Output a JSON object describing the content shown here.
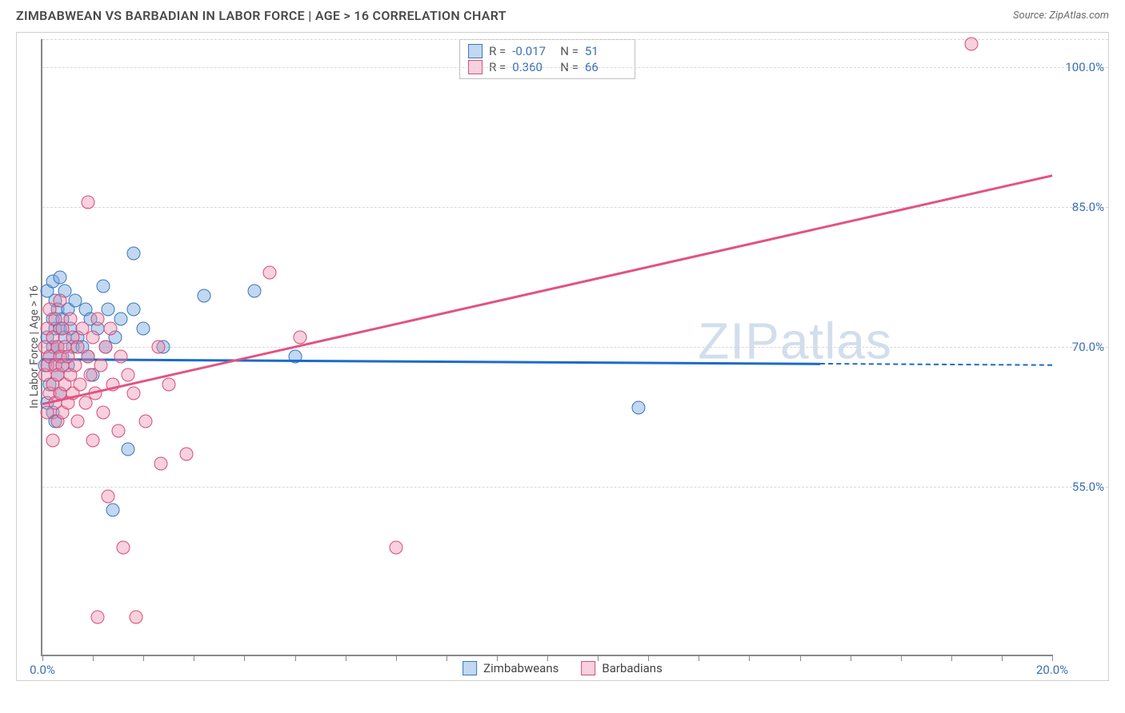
{
  "header": {
    "title": "ZIMBABWEAN VS BARBADIAN IN LABOR FORCE | AGE > 16 CORRELATION CHART",
    "source": "Source: ZipAtlas.com"
  },
  "watermark": {
    "zip": "ZIP",
    "atlas": "atlas"
  },
  "chart": {
    "type": "scatter",
    "background_color": "#ffffff",
    "border_color": "#d0d0d0",
    "axis_color": "#888888",
    "grid_color": "#d8d8d8",
    "tick_label_color": "#3b6fb6",
    "axis_label_color": "#555555",
    "y_axis_label": "In Labor Force | Age > 16",
    "xlim": [
      0.0,
      20.0
    ],
    "ylim": [
      37.0,
      103.0
    ],
    "x_ticks": [
      0.0,
      1.0,
      2.0,
      3.0,
      4.0,
      5.0,
      6.0,
      7.0,
      8.0,
      9.0,
      10.0,
      11.0,
      12.0,
      13.0,
      14.0,
      15.0,
      16.0,
      17.0,
      18.0,
      19.0,
      20.0
    ],
    "x_tick_labels": {
      "0": "0.0%",
      "20": "20.0%"
    },
    "y_gridlines": [
      55.0,
      70.0,
      85.0,
      100.0,
      103.0
    ],
    "y_tick_labels": {
      "55": "55.0%",
      "70": "70.0%",
      "85": "85.0%",
      "100": "100.0%"
    },
    "marker_radius": 8.5,
    "marker_border_width": 1.5,
    "series": [
      {
        "key": "zimbabweans",
        "label": "Zimbabweans",
        "fill_color": "rgba(118, 168, 222, 0.45)",
        "stroke_color": "#3b75bf",
        "line_color": "#1d6bc7",
        "stats": {
          "R_label": "R =",
          "R": "-0.017",
          "N_label": "N =",
          "N": "51"
        },
        "trend": {
          "x1": 0.0,
          "y1": 68.8,
          "x2": 15.4,
          "y2": 68.3,
          "dash_to_x": 20.0
        },
        "points": [
          [
            0.05,
            68
          ],
          [
            0.1,
            76
          ],
          [
            0.1,
            71
          ],
          [
            0.1,
            64
          ],
          [
            0.15,
            69
          ],
          [
            0.15,
            66
          ],
          [
            0.2,
            77
          ],
          [
            0.2,
            73
          ],
          [
            0.2,
            70
          ],
          [
            0.2,
            63
          ],
          [
            0.25,
            75
          ],
          [
            0.25,
            72
          ],
          [
            0.25,
            68
          ],
          [
            0.25,
            62
          ],
          [
            0.3,
            74
          ],
          [
            0.3,
            70
          ],
          [
            0.3,
            67
          ],
          [
            0.35,
            77.5
          ],
          [
            0.35,
            72
          ],
          [
            0.35,
            65
          ],
          [
            0.4,
            73
          ],
          [
            0.4,
            69
          ],
          [
            0.45,
            76
          ],
          [
            0.45,
            71
          ],
          [
            0.5,
            74
          ],
          [
            0.5,
            68
          ],
          [
            0.55,
            72
          ],
          [
            0.6,
            70
          ],
          [
            0.65,
            75
          ],
          [
            0.7,
            71
          ],
          [
            0.8,
            70
          ],
          [
            0.85,
            74
          ],
          [
            0.9,
            69
          ],
          [
            0.95,
            73
          ],
          [
            1.0,
            67
          ],
          [
            1.1,
            72
          ],
          [
            1.2,
            76.5
          ],
          [
            1.25,
            70
          ],
          [
            1.3,
            74
          ],
          [
            1.4,
            52.5
          ],
          [
            1.45,
            71
          ],
          [
            1.55,
            73
          ],
          [
            1.7,
            59
          ],
          [
            1.8,
            74
          ],
          [
            1.8,
            80
          ],
          [
            2.0,
            72
          ],
          [
            2.4,
            70
          ],
          [
            3.2,
            75.5
          ],
          [
            4.2,
            76
          ],
          [
            5.0,
            69
          ],
          [
            11.8,
            63.5
          ]
        ]
      },
      {
        "key": "barbadians",
        "label": "Barbadians",
        "fill_color": "rgba(236, 140, 170, 0.40)",
        "stroke_color": "#d94b78",
        "line_color": "#e15383",
        "stats": {
          "R_label": "R =",
          "R": "0.360",
          "N_label": "N =",
          "N": "66"
        },
        "trend": {
          "x1": 0.0,
          "y1": 64.0,
          "x2": 20.0,
          "y2": 88.5,
          "dash_to_x": null
        },
        "points": [
          [
            0.05,
            67
          ],
          [
            0.05,
            70
          ],
          [
            0.1,
            63
          ],
          [
            0.1,
            68
          ],
          [
            0.1,
            72
          ],
          [
            0.15,
            65
          ],
          [
            0.15,
            69
          ],
          [
            0.15,
            74
          ],
          [
            0.2,
            60
          ],
          [
            0.2,
            66
          ],
          [
            0.2,
            71
          ],
          [
            0.25,
            64
          ],
          [
            0.25,
            68
          ],
          [
            0.25,
            73
          ],
          [
            0.3,
            62
          ],
          [
            0.3,
            67
          ],
          [
            0.3,
            70
          ],
          [
            0.35,
            65
          ],
          [
            0.35,
            69
          ],
          [
            0.35,
            75
          ],
          [
            0.4,
            63
          ],
          [
            0.4,
            68
          ],
          [
            0.4,
            72
          ],
          [
            0.45,
            66
          ],
          [
            0.45,
            70
          ],
          [
            0.5,
            64
          ],
          [
            0.5,
            69
          ],
          [
            0.55,
            67
          ],
          [
            0.55,
            73
          ],
          [
            0.6,
            65
          ],
          [
            0.6,
            71
          ],
          [
            0.65,
            68
          ],
          [
            0.7,
            62
          ],
          [
            0.7,
            70
          ],
          [
            0.75,
            66
          ],
          [
            0.8,
            72
          ],
          [
            0.85,
            64
          ],
          [
            0.9,
            69
          ],
          [
            0.9,
            85.5
          ],
          [
            0.95,
            67
          ],
          [
            1.0,
            60
          ],
          [
            1.0,
            71
          ],
          [
            1.05,
            65
          ],
          [
            1.1,
            73
          ],
          [
            1.1,
            41
          ],
          [
            1.15,
            68
          ],
          [
            1.2,
            63
          ],
          [
            1.25,
            70
          ],
          [
            1.3,
            54
          ],
          [
            1.35,
            72
          ],
          [
            1.4,
            66
          ],
          [
            1.5,
            61
          ],
          [
            1.55,
            69
          ],
          [
            1.6,
            48.5
          ],
          [
            1.7,
            67
          ],
          [
            1.8,
            65
          ],
          [
            1.85,
            41
          ],
          [
            2.05,
            62
          ],
          [
            2.3,
            70
          ],
          [
            2.35,
            57.5
          ],
          [
            2.5,
            66
          ],
          [
            2.85,
            58.5
          ],
          [
            4.5,
            78
          ],
          [
            5.1,
            71
          ],
          [
            7.0,
            48.5
          ],
          [
            18.4,
            102.5
          ]
        ]
      }
    ]
  }
}
